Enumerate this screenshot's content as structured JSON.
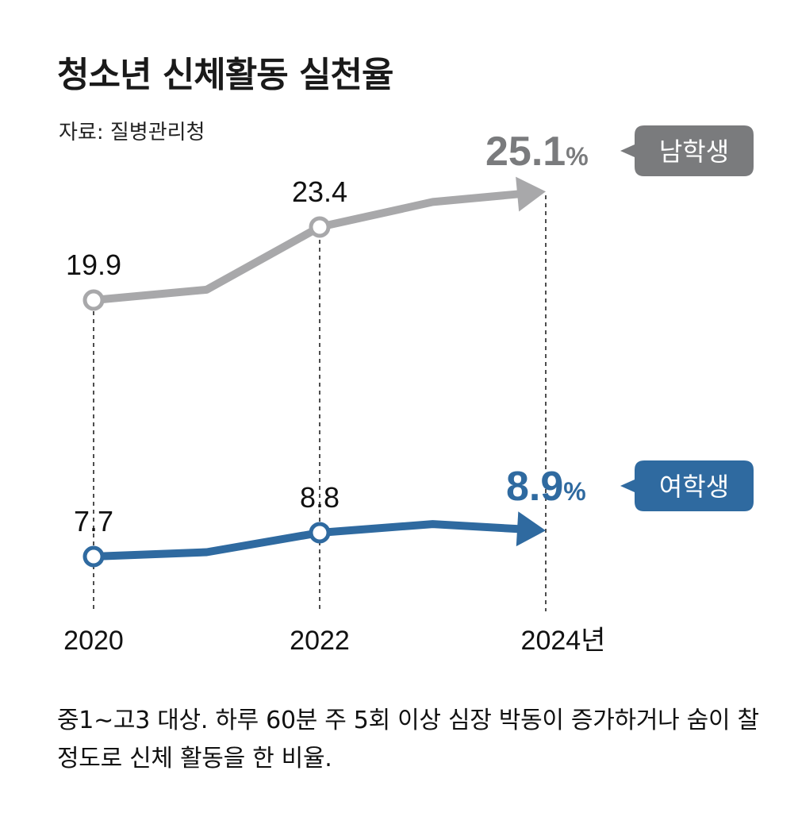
{
  "header": {
    "title": "청소년 신체활동 실천율",
    "source": "자료: 질병관리청"
  },
  "chart_data": {
    "type": "line",
    "x": [
      "2020",
      "2022",
      "2024년"
    ],
    "series": [
      {
        "name": "남학생",
        "color": "#a8a8aa",
        "tag_color": "#7a7b7d",
        "points": [
          {
            "x": 2020,
            "y": 19.9
          },
          {
            "x": 2021,
            "y": 20.4
          },
          {
            "x": 2022,
            "y": 23.4
          },
          {
            "x": 2023,
            "y": 24.6
          },
          {
            "x": 2024,
            "y": 25.1
          }
        ],
        "labels": [
          "19.9",
          "23.4"
        ],
        "end_value": "25.1",
        "unit": "%"
      },
      {
        "name": "여학생",
        "color": "#2f6aa0",
        "tag_color": "#2f6aa0",
        "points": [
          {
            "x": 2020,
            "y": 7.7
          },
          {
            "x": 2021,
            "y": 7.9
          },
          {
            "x": 2022,
            "y": 8.8
          },
          {
            "x": 2023,
            "y": 9.2
          },
          {
            "x": 2024,
            "y": 8.9
          }
        ],
        "labels": [
          "7.7",
          "8.8"
        ],
        "end_value": "8.9",
        "unit": "%"
      }
    ],
    "xlim": [
      2020,
      2024
    ],
    "grid": false,
    "legend": "inline-right"
  },
  "note": "중1∼고3 대상. 하루 60분 주 5회 이상 심장 박동이 증가하거나 숨이 찰 정도로 신체 활동을 한 비율."
}
